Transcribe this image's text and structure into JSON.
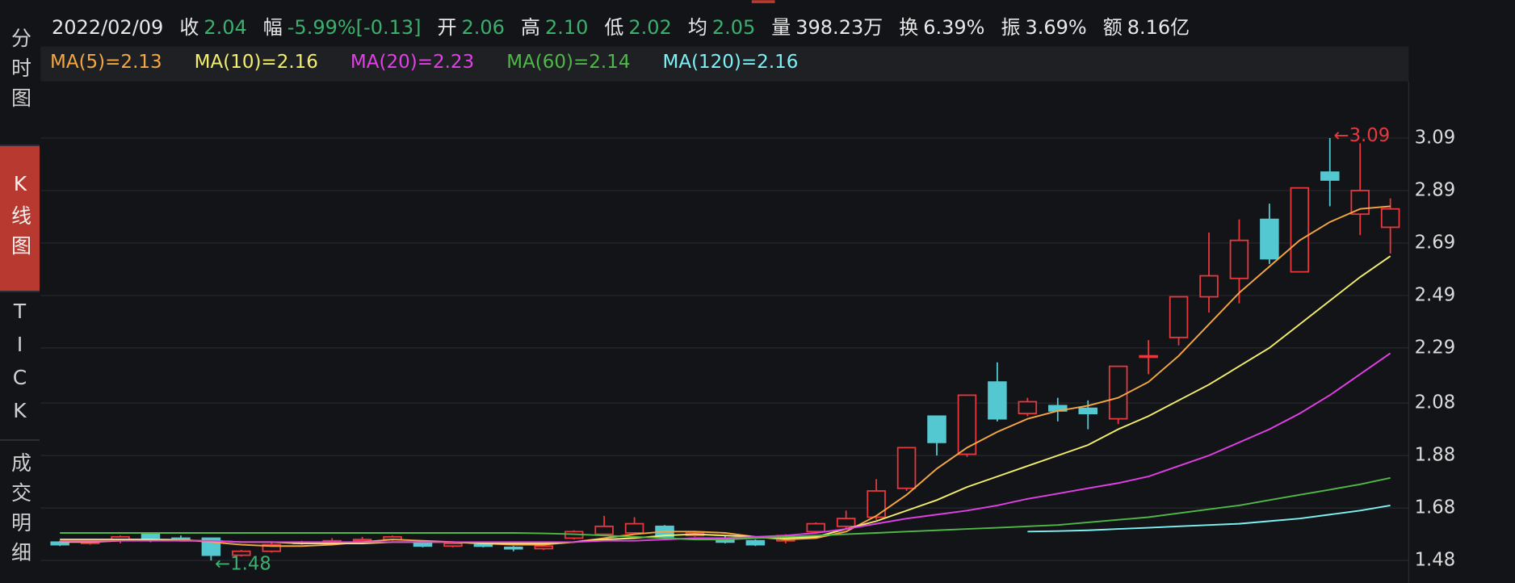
{
  "sidebar": [
    "分时图",
    "K线图",
    "TICK",
    "成交明细"
  ],
  "header": {
    "date": "2022/02/09",
    "fields": [
      {
        "label": "收",
        "value": "2.04",
        "color": "#3bb06d"
      },
      {
        "label": "幅",
        "value": "-5.99%[-0.13]",
        "color": "#3bb06d"
      },
      {
        "label": "开",
        "value": "2.06",
        "color": "#3bb06d"
      },
      {
        "label": "高",
        "value": "2.10",
        "color": "#3bb06d"
      },
      {
        "label": "低",
        "value": "2.02",
        "color": "#3bb06d"
      },
      {
        "label": "均",
        "value": "2.05",
        "color": "#3bb06d"
      },
      {
        "label": "量",
        "value": "398.23万",
        "color": "#e8e8e8"
      },
      {
        "label": "换",
        "value": "6.39%",
        "color": "#e8e8e8"
      },
      {
        "label": "振",
        "value": "3.69%",
        "color": "#e8e8e8"
      },
      {
        "label": "额",
        "value": "8.16亿",
        "color": "#e8e8e8"
      }
    ]
  },
  "chart_data": {
    "type": "candlestick",
    "up_color": "#e8383d",
    "down_color": "#54c8d0",
    "open": [
      1.55,
      1.545,
      1.56,
      1.58,
      1.565,
      1.565,
      1.5,
      1.515,
      1.545,
      1.55,
      1.555,
      1.56,
      1.55,
      1.535,
      1.54,
      1.53,
      1.525,
      1.565,
      1.58,
      1.585,
      1.61,
      1.575,
      1.565,
      1.555,
      1.555,
      1.59,
      1.61,
      1.645,
      1.755,
      2.03,
      1.885,
      2.16,
      2.04,
      2.07,
      2.06,
      2.02,
      2.255,
      2.33,
      2.485,
      2.555,
      2.78,
      2.58,
      2.96,
      2.8,
      2.75
    ],
    "high": [
      1.555,
      1.56,
      1.575,
      1.585,
      1.575,
      1.565,
      1.52,
      1.55,
      1.555,
      1.565,
      1.57,
      1.575,
      1.555,
      1.55,
      1.545,
      1.535,
      1.54,
      1.595,
      1.65,
      1.645,
      1.615,
      1.59,
      1.575,
      1.56,
      1.58,
      1.625,
      1.67,
      1.79,
      1.91,
      2.03,
      2.11,
      2.235,
      2.1,
      2.1,
      2.09,
      2.22,
      2.32,
      2.485,
      2.73,
      2.78,
      2.84,
      2.9,
      3.09,
      3.07,
      2.86
    ],
    "low": [
      1.535,
      1.54,
      1.545,
      1.55,
      1.555,
      1.48,
      1.495,
      1.51,
      1.54,
      1.545,
      1.55,
      1.555,
      1.53,
      1.53,
      1.53,
      1.515,
      1.52,
      1.56,
      1.575,
      1.58,
      1.56,
      1.57,
      1.545,
      1.535,
      1.545,
      1.585,
      1.6,
      1.635,
      1.745,
      1.88,
      1.875,
      2.01,
      2.03,
      2.01,
      1.98,
      2.0,
      2.19,
      2.3,
      2.425,
      2.46,
      2.61,
      2.58,
      2.83,
      2.72,
      2.65
    ],
    "close": [
      1.54,
      1.555,
      1.57,
      1.56,
      1.56,
      1.5,
      1.515,
      1.54,
      1.55,
      1.555,
      1.56,
      1.57,
      1.535,
      1.545,
      1.535,
      1.525,
      1.535,
      1.59,
      1.61,
      1.62,
      1.57,
      1.585,
      1.55,
      1.54,
      1.575,
      1.62,
      1.64,
      1.745,
      1.91,
      1.93,
      2.11,
      2.02,
      2.085,
      2.05,
      2.04,
      2.22,
      2.26,
      2.485,
      2.565,
      2.7,
      2.63,
      2.9,
      2.93,
      2.89,
      2.82
    ],
    "series": [
      {
        "name": "MA(5)=2.13",
        "color": "#f5a742",
        "values": [
          1.55,
          1.55,
          1.555,
          1.56,
          1.56,
          1.55,
          1.54,
          1.535,
          1.535,
          1.54,
          1.55,
          1.56,
          1.555,
          1.55,
          1.545,
          1.54,
          1.54,
          1.55,
          1.565,
          1.58,
          1.59,
          1.59,
          1.585,
          1.57,
          1.56,
          1.565,
          1.59,
          1.65,
          1.73,
          1.83,
          1.91,
          1.97,
          2.02,
          2.05,
          2.07,
          2.1,
          2.16,
          2.26,
          2.38,
          2.5,
          2.6,
          2.7,
          2.77,
          2.82,
          2.83
        ]
      },
      {
        "name": "MA(10)=2.16",
        "color": "#f3ee6c",
        "values": [
          1.56,
          1.56,
          1.56,
          1.56,
          1.555,
          1.555,
          1.55,
          1.55,
          1.545,
          1.545,
          1.545,
          1.55,
          1.55,
          1.55,
          1.545,
          1.545,
          1.545,
          1.55,
          1.56,
          1.565,
          1.575,
          1.58,
          1.575,
          1.57,
          1.565,
          1.57,
          1.6,
          1.63,
          1.67,
          1.71,
          1.76,
          1.8,
          1.84,
          1.88,
          1.92,
          1.98,
          2.03,
          2.09,
          2.15,
          2.22,
          2.29,
          2.38,
          2.47,
          2.56,
          2.64
        ]
      },
      {
        "name": "MA(20)=2.23",
        "color": "#e23fe6",
        "values": [
          1.555,
          1.555,
          1.555,
          1.555,
          1.555,
          1.555,
          1.55,
          1.55,
          1.55,
          1.55,
          1.55,
          1.55,
          1.55,
          1.55,
          1.55,
          1.55,
          1.55,
          1.55,
          1.555,
          1.555,
          1.56,
          1.565,
          1.565,
          1.57,
          1.575,
          1.585,
          1.6,
          1.62,
          1.64,
          1.655,
          1.67,
          1.69,
          1.715,
          1.735,
          1.755,
          1.775,
          1.8,
          1.84,
          1.88,
          1.93,
          1.98,
          2.04,
          2.11,
          2.19,
          2.27
        ]
      },
      {
        "name": "MA(60)=2.14",
        "color": "#4fb848",
        "values": [
          1.585,
          1.585,
          1.585,
          1.585,
          1.585,
          1.585,
          1.585,
          1.585,
          1.585,
          1.585,
          1.585,
          1.585,
          1.585,
          1.585,
          1.585,
          1.585,
          1.583,
          1.58,
          1.575,
          1.57,
          1.565,
          1.56,
          1.56,
          1.565,
          1.57,
          1.575,
          1.58,
          1.585,
          1.59,
          1.595,
          1.6,
          1.605,
          1.61,
          1.615,
          1.625,
          1.635,
          1.645,
          1.66,
          1.675,
          1.69,
          1.71,
          1.73,
          1.75,
          1.77,
          1.795
        ]
      },
      {
        "name": "MA(120)=2.16",
        "color": "#7df1f5",
        "values": [
          null,
          null,
          null,
          null,
          null,
          null,
          null,
          null,
          null,
          null,
          null,
          null,
          null,
          null,
          null,
          null,
          null,
          null,
          null,
          null,
          null,
          null,
          null,
          null,
          null,
          null,
          null,
          null,
          null,
          null,
          null,
          null,
          1.59,
          1.592,
          1.595,
          1.6,
          1.605,
          1.61,
          1.615,
          1.62,
          1.63,
          1.64,
          1.655,
          1.67,
          1.69
        ]
      }
    ],
    "ylim": [
      1.406,
      3.306
    ],
    "yticks": [
      3.09,
      2.89,
      2.69,
      2.49,
      2.29,
      2.08,
      1.88,
      1.68,
      1.48
    ],
    "grid": true,
    "annotations": [
      {
        "text": "←3.09",
        "color": "#e8383d"
      },
      {
        "text": "←1.48",
        "color": "#3bb06d"
      }
    ]
  }
}
